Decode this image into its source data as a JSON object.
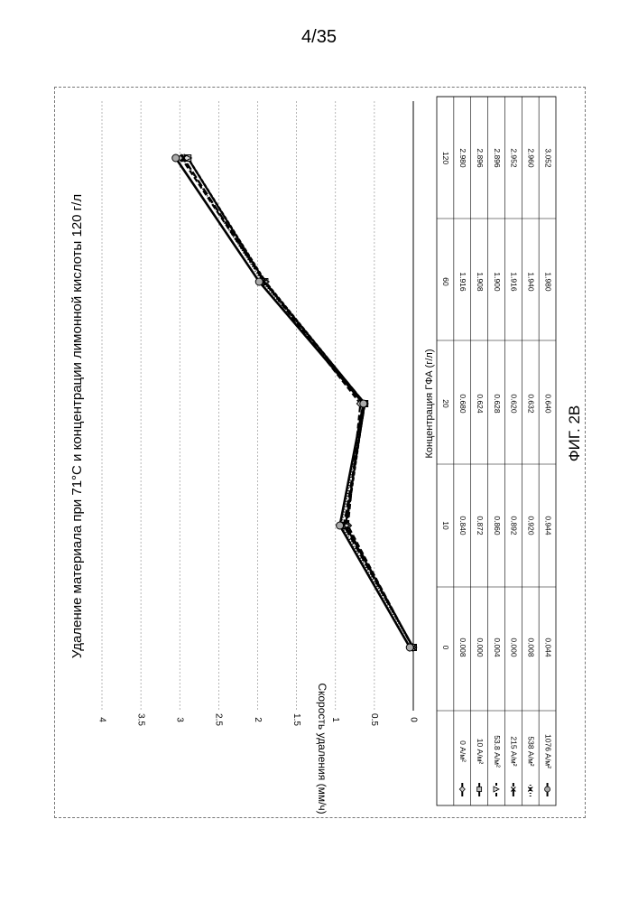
{
  "page_number": "4/35",
  "figure_label": "ФИГ. 2В",
  "chart_data": {
    "type": "line",
    "title": "Удаление материала при 71°С и концентрации лимонной кислоты 120 г/л",
    "xlabel": "Концентрация ГФА (г/л)",
    "ylabel": "Скорость удаления (мм/ч)",
    "categories": [
      "0",
      "10",
      "20",
      "60",
      "120"
    ],
    "ylim": [
      0,
      4
    ],
    "yticks": [
      "0",
      "0.5",
      "1",
      "1.5",
      "2",
      "2.5",
      "3",
      "3.5",
      "4"
    ],
    "grid": true,
    "legend": "data-table",
    "series": [
      {
        "name": "0 А/м²",
        "marker": "diamond",
        "values": [
          0.008,
          0.84,
          0.68,
          1.916,
          2.98
        ],
        "labels": [
          "0.008",
          "0.840",
          "0.680",
          "1.916",
          "2.980"
        ]
      },
      {
        "name": "10 А/м²",
        "marker": "square",
        "values": [
          0.0,
          0.872,
          0.624,
          1.908,
          2.896
        ],
        "labels": [
          "0.000",
          "0.872",
          "0.624",
          "1.908",
          "2.896"
        ]
      },
      {
        "name": "53.8 А/м²",
        "marker": "triangle",
        "values": [
          0.004,
          0.86,
          0.628,
          1.9,
          2.896
        ],
        "labels": [
          "0.004",
          "0.860",
          "0.628",
          "1.900",
          "2.896"
        ]
      },
      {
        "name": "215 А/м²",
        "marker": "x",
        "values": [
          0.0,
          0.892,
          0.62,
          1.916,
          2.952
        ],
        "labels": [
          "0.000",
          "0.892",
          "0.620",
          "1.916",
          "2.952"
        ]
      },
      {
        "name": "538 А/м²",
        "marker": "star",
        "values": [
          0.008,
          0.92,
          0.632,
          1.94,
          2.96
        ],
        "labels": [
          "0.008",
          "0.920",
          "0.632",
          "1.940",
          "2.960"
        ]
      },
      {
        "name": "1076 А/м²",
        "marker": "circle",
        "values": [
          0.044,
          0.944,
          0.64,
          1.98,
          3.052
        ],
        "labels": [
          "0.044",
          "0.944",
          "0.640",
          "1.980",
          "3.052"
        ]
      }
    ]
  }
}
